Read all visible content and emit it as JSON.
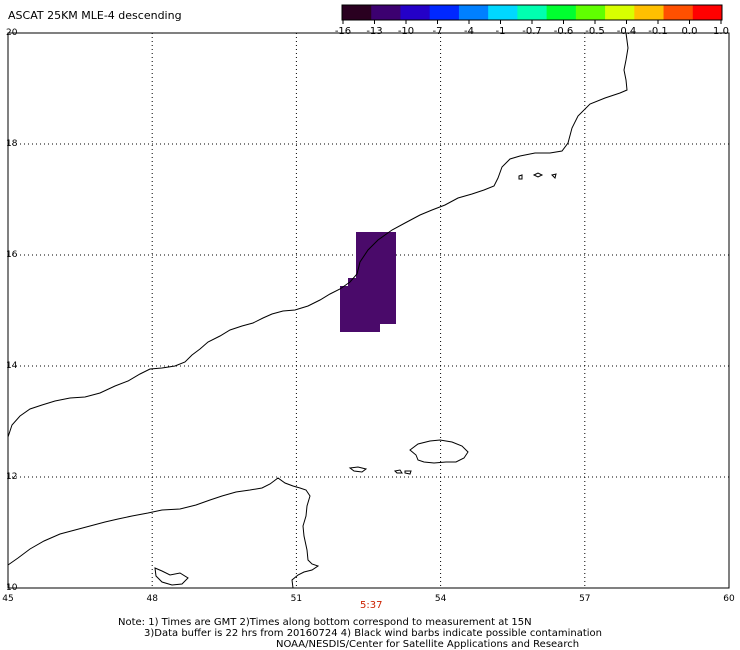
{
  "title": "ASCAT 25KM MLE-4 descending",
  "colorbar": {
    "tick_labels": [
      "-16",
      "-13",
      "-10",
      "-7",
      "-4",
      "-1",
      "-0.7",
      "-0.6",
      "-0.5",
      "-0.4",
      "-0.1",
      "0.0",
      "1.0"
    ],
    "colors": [
      "#2a0020",
      "#3c0070",
      "#2400c8",
      "#0028ff",
      "#0080ff",
      "#00d8ff",
      "#00ffb0",
      "#00ff30",
      "#60ff00",
      "#d8ff00",
      "#ffc000",
      "#ff5000",
      "#ff0000"
    ]
  },
  "map": {
    "lat_labels": [
      "20",
      "18",
      "16",
      "14",
      "12",
      "10"
    ],
    "lon_labels": [
      "45",
      "48",
      "51",
      "54",
      "57",
      "60"
    ],
    "lat_range": [
      10,
      20
    ],
    "lon_range": [
      45,
      60
    ],
    "swath_color": "#4a0a6a"
  },
  "time_label": "5:37",
  "time_label_color": "#cc2200",
  "notes": {
    "line1": "Note: 1) Times are GMT 2)Times along bottom correspond to measurement at 15N",
    "line2": "3)Data buffer is 22 hrs from 20160724 4) Black wind barbs indicate possible contamination",
    "line3": "NOAA/NESDIS/Center for Satellite Applications and Research"
  }
}
